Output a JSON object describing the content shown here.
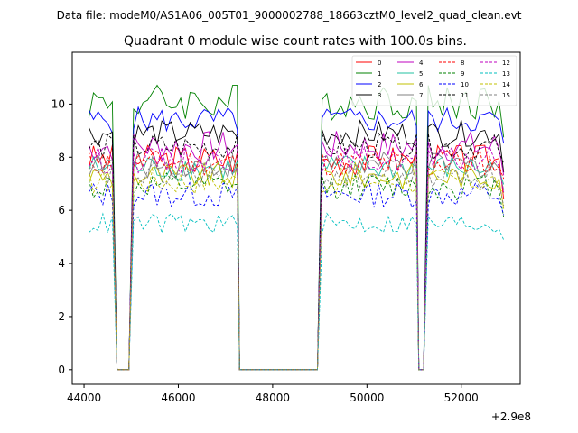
{
  "chart_data": {
    "type": "line",
    "suptitle": "Data file: modeM0/AS1A06_005T01_9000002788_18663cztM0_level2_quad_clean.evt",
    "title": "Quadrant 0 module wise count rates with 100.0s bins.",
    "xlabel": "",
    "ylabel": "",
    "x_offset_label": "+2.9e8",
    "xlim": [
      43750,
      53250
    ],
    "ylim": [
      -0.55,
      11.95
    ],
    "xticks": [
      44000,
      46000,
      48000,
      50000,
      52000
    ],
    "xtick_labels": [
      "44000",
      "46000",
      "48000",
      "50000",
      "52000"
    ],
    "yticks": [
      0,
      2,
      4,
      6,
      8,
      10
    ],
    "ytick_labels": [
      "0",
      "2",
      "4",
      "6",
      "8",
      "10"
    ],
    "legend_position": "top-right",
    "series": [
      {
        "name": "0",
        "color": "#ff0000",
        "dash": "solid",
        "level": 7.9,
        "amp": 0.6
      },
      {
        "name": "1",
        "color": "#008000",
        "dash": "solid",
        "level": 10.1,
        "amp": 0.7
      },
      {
        "name": "2",
        "color": "#0000ff",
        "dash": "solid",
        "level": 9.4,
        "amp": 0.5
      },
      {
        "name": "3",
        "color": "#000000",
        "dash": "solid",
        "level": 8.9,
        "amp": 0.5
      },
      {
        "name": "4",
        "color": "#bf00bf",
        "dash": "solid",
        "level": 8.4,
        "amp": 0.6
      },
      {
        "name": "5",
        "color": "#20c0a0",
        "dash": "solid",
        "level": 7.6,
        "amp": 0.5
      },
      {
        "name": "6",
        "color": "#c0c000",
        "dash": "solid",
        "level": 7.3,
        "amp": 0.5
      },
      {
        "name": "7",
        "color": "#808080",
        "dash": "solid",
        "level": 7.7,
        "amp": 0.5
      },
      {
        "name": "8",
        "color": "#ff0000",
        "dash": "dashed",
        "level": 7.8,
        "amp": 0.5
      },
      {
        "name": "9",
        "color": "#008000",
        "dash": "dashed",
        "level": 6.9,
        "amp": 0.5
      },
      {
        "name": "10",
        "color": "#0000ff",
        "dash": "dashed",
        "level": 6.6,
        "amp": 0.5
      },
      {
        "name": "11",
        "color": "#000000",
        "dash": "dashed",
        "level": 8.4,
        "amp": 0.5
      },
      {
        "name": "12",
        "color": "#bf00bf",
        "dash": "dashed",
        "level": 7.9,
        "amp": 0.5
      },
      {
        "name": "13",
        "color": "#00bfbf",
        "dash": "dashed",
        "level": 5.5,
        "amp": 0.4
      },
      {
        "name": "14",
        "color": "#c0c000",
        "dash": "dashed",
        "level": 7.1,
        "amp": 0.5
      },
      {
        "name": "15",
        "color": "#808080",
        "dash": "dashed",
        "level": 7.3,
        "amp": 0.5
      }
    ],
    "active_intervals": [
      [
        44100,
        44650
      ],
      [
        45050,
        47250
      ],
      [
        49050,
        51050
      ],
      [
        51300,
        52900
      ]
    ],
    "zero_points": [
      44700,
      44800,
      44850,
      44950,
      47300,
      48950,
      51100,
      51200
    ]
  }
}
